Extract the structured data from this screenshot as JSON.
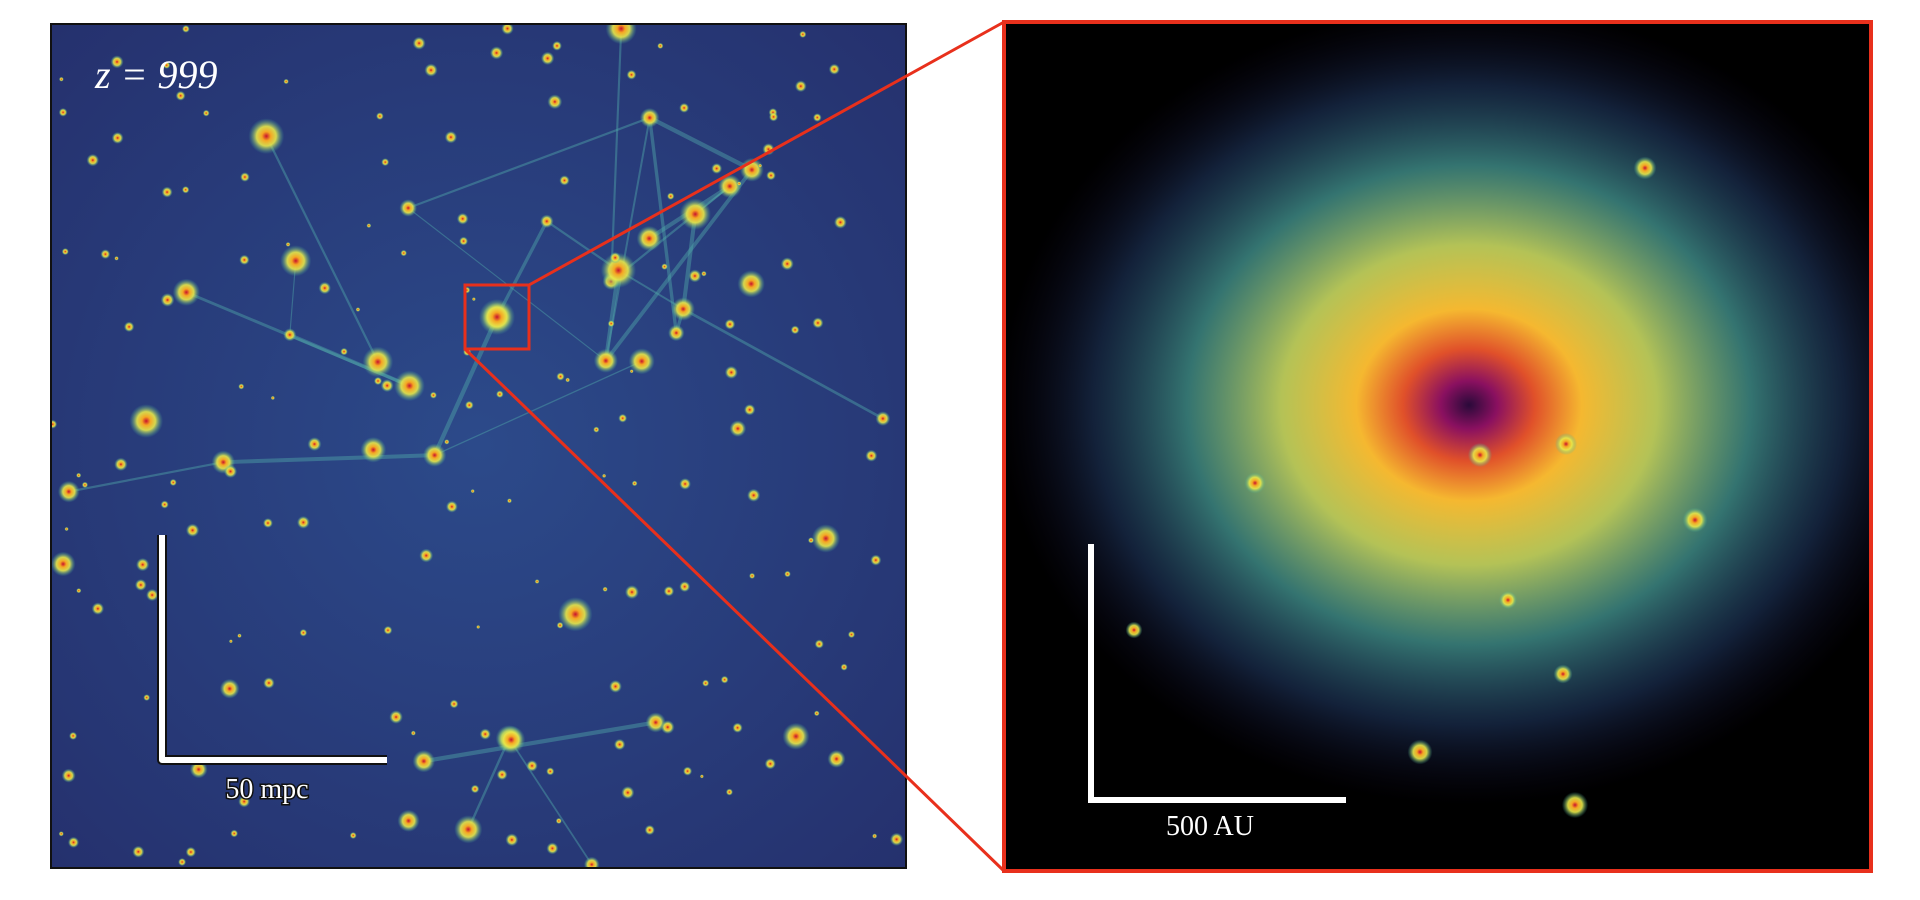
{
  "panels": [
    {
      "label": "z = 999",
      "scale_bar": "50 mpc"
    },
    {
      "scale_bar": "500 AU"
    }
  ]
}
